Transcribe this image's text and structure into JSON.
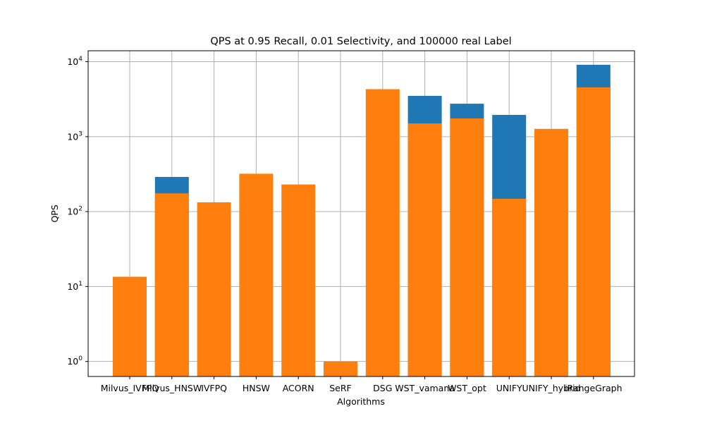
{
  "chart_data": {
    "type": "bar",
    "title": "QPS at 0.95 Recall, 0.01 Selectivity, and 100000 real Label",
    "xlabel": "Algorithms",
    "ylabel": "QPS",
    "yscale": "log",
    "ylim": [
      0.63,
      14000
    ],
    "grid": true,
    "categories": [
      "Milvus_IVFPQ",
      "Milvus_HNSW",
      "IVFPQ",
      "HNSW",
      "ACORN",
      "SeRF",
      "DSG",
      "WST_vamana",
      "WST_opt",
      "UNIFY",
      "UNIFY_hybrid",
      "iRangeGraph"
    ],
    "series": [
      {
        "color": "#1f77b4",
        "values": [
          null,
          290,
          null,
          null,
          null,
          null,
          null,
          3500,
          2750,
          1950,
          null,
          9100
        ]
      },
      {
        "color": "#ff7f0e",
        "values": [
          13.5,
          175,
          133,
          320,
          230,
          1.0,
          4300,
          1500,
          1750,
          148,
          1270,
          4550
        ]
      }
    ],
    "yticks": [
      {
        "value": 1,
        "base": "10",
        "exp": "0"
      },
      {
        "value": 10,
        "base": "10",
        "exp": "1"
      },
      {
        "value": 100,
        "base": "10",
        "exp": "2"
      },
      {
        "value": 1000,
        "base": "10",
        "exp": "3"
      },
      {
        "value": 10000,
        "base": "10",
        "exp": "4"
      }
    ]
  }
}
